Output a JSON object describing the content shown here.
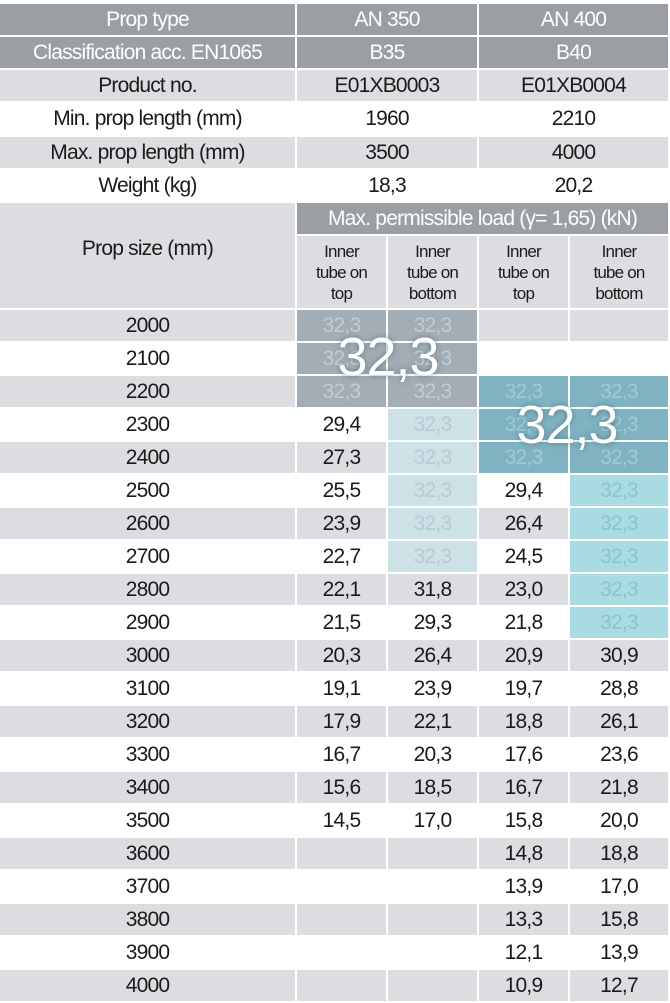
{
  "spec_rows": [
    [
      "Prop type",
      "AN 350",
      "AN 400"
    ],
    [
      "Classification acc. EN1065",
      "B35",
      "B40"
    ],
    [
      "Product no.",
      "E01XB0003",
      "E01XB0004"
    ],
    [
      "Min. prop length (mm)",
      "1960",
      "2210"
    ],
    [
      "Max. prop length (mm)",
      "3500",
      "4000"
    ],
    [
      "Weight (kg)",
      "18,3",
      "20,2"
    ]
  ],
  "load_header": "Max. permissible load (γ= 1,65) (kN)",
  "size_header": "Prop size (mm)",
  "sub_headers": [
    "Inner\ntube on\ntop",
    "Inner\ntube on\nbottom",
    "Inner\ntube on\ntop",
    "Inner\ntube on\nbottom"
  ],
  "rows": [
    [
      "2000",
      "32,3",
      "32,3",
      null,
      null
    ],
    [
      "2100",
      "32,3",
      "32,3",
      null,
      null
    ],
    [
      "2200",
      "32,3",
      "32,3",
      "32,3",
      "32,3"
    ],
    [
      "2300",
      "29,4",
      "32,3",
      "32,3",
      "32,3"
    ],
    [
      "2400",
      "27,3",
      "32,3",
      "32,3",
      "32,3"
    ],
    [
      "2500",
      "25,5",
      "32,3",
      "29,4",
      "32,3"
    ],
    [
      "2600",
      "23,9",
      "32,3",
      "26,4",
      "32,3"
    ],
    [
      "2700",
      "22,7",
      "32,3",
      "24,5",
      "32,3"
    ],
    [
      "2800",
      "22,1",
      "31,8",
      "23,0",
      "32,3"
    ],
    [
      "2900",
      "21,5",
      "29,3",
      "21,8",
      "32,3"
    ],
    [
      "3000",
      "20,3",
      "26,4",
      "20,9",
      "30,9"
    ],
    [
      "3100",
      "19,1",
      "23,9",
      "19,7",
      "28,8"
    ],
    [
      "3200",
      "17,9",
      "22,1",
      "18,8",
      "26,1"
    ],
    [
      "3300",
      "16,7",
      "20,3",
      "17,6",
      "23,6"
    ],
    [
      "3400",
      "15,6",
      "18,5",
      "16,7",
      "21,8"
    ],
    [
      "3500",
      "14,5",
      "17,0",
      "15,8",
      "20,0"
    ],
    [
      "3600",
      null,
      null,
      "14,8",
      "18,8"
    ],
    [
      "3700",
      null,
      null,
      "13,9",
      "17,0"
    ],
    [
      "3800",
      null,
      null,
      "13,3",
      "15,8"
    ],
    [
      "3900",
      null,
      null,
      "12,1",
      "13,9"
    ],
    [
      "4000",
      null,
      null,
      "10,9",
      "12,7"
    ]
  ],
  "overlays": [
    "32,3",
    "32,3"
  ]
}
